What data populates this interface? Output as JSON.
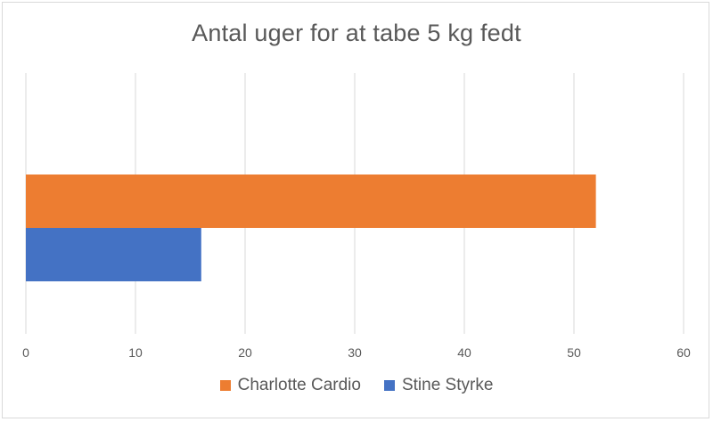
{
  "chart_data": {
    "type": "bar",
    "orientation": "horizontal",
    "title": "Antal uger for at tabe 5 kg fedt",
    "xlabel": "",
    "ylabel": "",
    "xlim": [
      0,
      60
    ],
    "xticks": [
      0,
      10,
      20,
      30,
      40,
      50,
      60
    ],
    "grid": true,
    "legend_position": "bottom",
    "series": [
      {
        "name": "Charlotte Cardio",
        "color": "#ED7D31",
        "value": 52
      },
      {
        "name": "Stine Styrke",
        "color": "#4472C4",
        "value": 16
      }
    ]
  }
}
